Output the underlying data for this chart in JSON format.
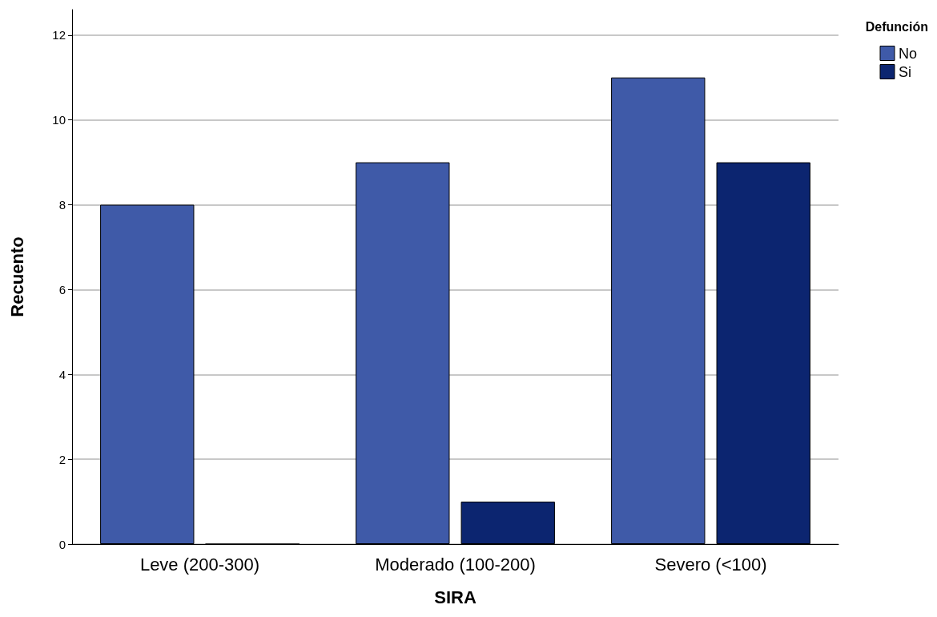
{
  "chart_data": {
    "type": "bar",
    "xlabel": "SIRA",
    "ylabel": "Recuento",
    "legend_title": "Defunción",
    "categories": [
      "Leve (200-300)",
      "Moderado (100-200)",
      "Severo (<100)"
    ],
    "series": [
      {
        "name": "No",
        "color": "#3f5aa8",
        "values": [
          8,
          9,
          11
        ]
      },
      {
        "name": "Si",
        "color": "#0c2570",
        "values": [
          0,
          1,
          9
        ]
      }
    ],
    "ylim": [
      0,
      12.6
    ],
    "yticks": [
      0,
      2,
      4,
      6,
      8,
      10,
      12
    ],
    "grid": "y",
    "legend": "top right"
  }
}
